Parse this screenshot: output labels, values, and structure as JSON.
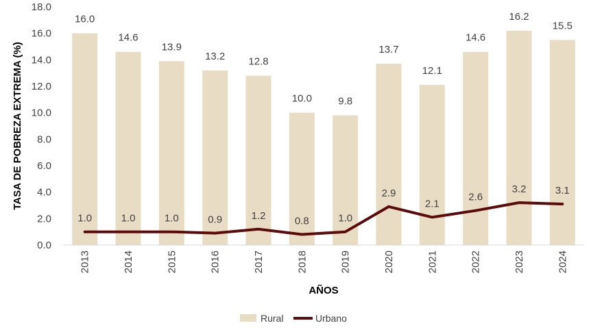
{
  "chart_data": {
    "type": "bar",
    "categories": [
      "2013",
      "2014",
      "2015",
      "2016",
      "2017",
      "2018",
      "2019",
      "2020",
      "2021",
      "2022",
      "2023",
      "2024"
    ],
    "series": [
      {
        "name": "Rural",
        "type": "bar",
        "color": "#E8DCC4",
        "values": [
          16.0,
          14.6,
          13.9,
          13.2,
          12.8,
          10.0,
          9.8,
          13.7,
          12.1,
          14.6,
          16.2,
          15.5
        ],
        "labels": [
          "16.0",
          "14.6",
          "13.9",
          "13.2",
          "12.8",
          "10.0",
          "9.8",
          "13.7",
          "12.1",
          "14.6",
          "16.2",
          "15.5"
        ]
      },
      {
        "name": "Urbano",
        "type": "line",
        "color": "#5C0A0A",
        "values": [
          1.0,
          1.0,
          1.0,
          0.9,
          1.2,
          0.8,
          1.0,
          2.9,
          2.1,
          2.6,
          3.2,
          3.1
        ],
        "labels": [
          "1.0",
          "1.0",
          "1.0",
          "0.9",
          "1.2",
          "0.8",
          "1.0",
          "2.9",
          "2.1",
          "2.6",
          "3.2",
          "3.1"
        ]
      }
    ],
    "title": "",
    "xlabel": "AÑOS",
    "ylabel": "TASA DE POBREZA EXTREMA (%)",
    "ylim": [
      0,
      18
    ],
    "yticks": [
      "0.0",
      "2.0",
      "4.0",
      "6.0",
      "8.0",
      "10.0",
      "12.0",
      "14.0",
      "16.0",
      "18.0"
    ],
    "grid": false,
    "legend": "bottom"
  }
}
